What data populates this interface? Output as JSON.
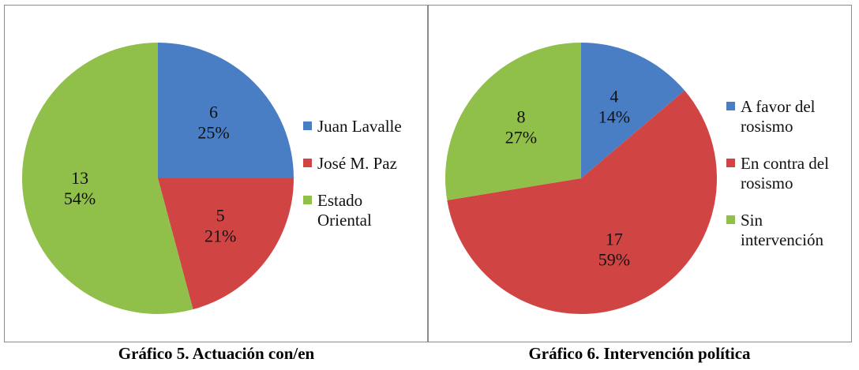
{
  "chart_data": [
    {
      "type": "pie",
      "title": "Gráfico 5. Actuación con/en",
      "categories": [
        "Juan Lavalle",
        "José M. Paz",
        "Estado Oriental"
      ],
      "values": [
        6,
        5,
        13
      ],
      "percent_labels": [
        "25%",
        "21%",
        "54%"
      ],
      "colors": [
        "#4a7ec4",
        "#d04544",
        "#90bf4a"
      ],
      "legend": "right"
    },
    {
      "type": "pie",
      "title": "Gráfico 6. Intervención política",
      "categories": [
        "A favor del rosismo",
        "En contra del rosismo",
        "Sin intervención"
      ],
      "values": [
        4,
        17,
        8
      ],
      "percent_labels": [
        "14%",
        "59%",
        "27%"
      ],
      "colors": [
        "#4a7ec4",
        "#d04544",
        "#90bf4a"
      ],
      "legend": "right"
    }
  ]
}
